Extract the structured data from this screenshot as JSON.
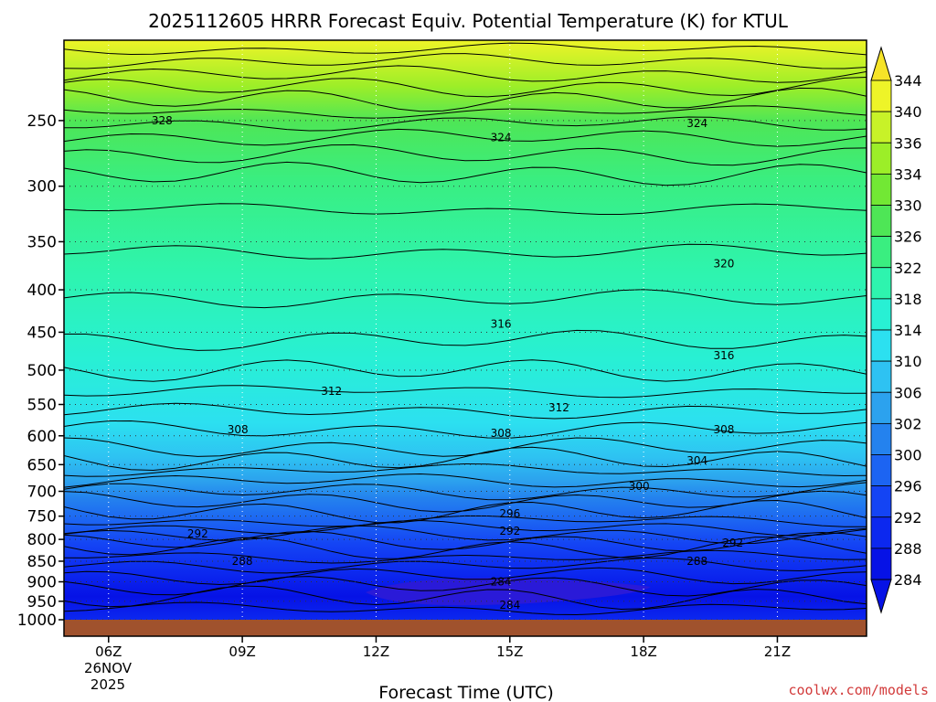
{
  "chart_data": {
    "type": "heatmap",
    "title": "2025112605 HRRR Forecast Equiv. Potential Temperature (K) for KTUL",
    "xlabel": "Forecast Time (UTC)",
    "ylabel": "",
    "credit": "coolwx.com/models",
    "x_ticks": [
      "06Z",
      "09Z",
      "12Z",
      "15Z",
      "18Z",
      "21Z"
    ],
    "x_date_line1": "26NOV",
    "x_date_line2": "2025",
    "x_range_hours": [
      5,
      23
    ],
    "y_ticks": [
      250,
      300,
      350,
      400,
      450,
      500,
      550,
      600,
      650,
      700,
      750,
      800,
      850,
      900,
      950,
      1000
    ],
    "y_range_hpa": [
      200,
      1000
    ],
    "y_scale": "log-pressure",
    "colorbar_levels": [
      284,
      288,
      292,
      296,
      300,
      302,
      306,
      310,
      314,
      318,
      322,
      326,
      330,
      334,
      336,
      340,
      344
    ],
    "colorbar_colors": [
      "#0612e6",
      "#0c28ef",
      "#1444f4",
      "#1c64f2",
      "#2482ee",
      "#2ca2ee",
      "#2ec2f2",
      "#2ce0f0",
      "#28f0d4",
      "#2ef4ae",
      "#3aee80",
      "#4ee656",
      "#72e834",
      "#9cee28",
      "#c8f228",
      "#eef428",
      "#f6e428"
    ],
    "surface_pressure_hpa": 1000,
    "grid": true,
    "contour_labels": [
      {
        "text": "328",
        "x": 7.2,
        "p": 250
      },
      {
        "text": "324",
        "x": 14.8,
        "p": 262
      },
      {
        "text": "324",
        "x": 19.2,
        "p": 252
      },
      {
        "text": "320",
        "x": 19.8,
        "p": 372
      },
      {
        "text": "316",
        "x": 14.8,
        "p": 440
      },
      {
        "text": "316",
        "x": 19.8,
        "p": 480
      },
      {
        "text": "312",
        "x": 11.0,
        "p": 530
      },
      {
        "text": "312",
        "x": 16.1,
        "p": 555
      },
      {
        "text": "308",
        "x": 8.9,
        "p": 590
      },
      {
        "text": "308",
        "x": 14.8,
        "p": 596
      },
      {
        "text": "308",
        "x": 19.8,
        "p": 590
      },
      {
        "text": "304",
        "x": 19.2,
        "p": 643
      },
      {
        "text": "300",
        "x": 17.9,
        "p": 690
      },
      {
        "text": "296",
        "x": 15.0,
        "p": 745
      },
      {
        "text": "292",
        "x": 15.0,
        "p": 782
      },
      {
        "text": "292",
        "x": 8.0,
        "p": 788
      },
      {
        "text": "292",
        "x": 20.0,
        "p": 808
      },
      {
        "text": "288",
        "x": 9.0,
        "p": 850
      },
      {
        "text": "288",
        "x": 19.2,
        "p": 850
      },
      {
        "text": "284",
        "x": 14.8,
        "p": 900
      },
      {
        "text": "284",
        "x": 15.0,
        "p": 960
      }
    ]
  }
}
